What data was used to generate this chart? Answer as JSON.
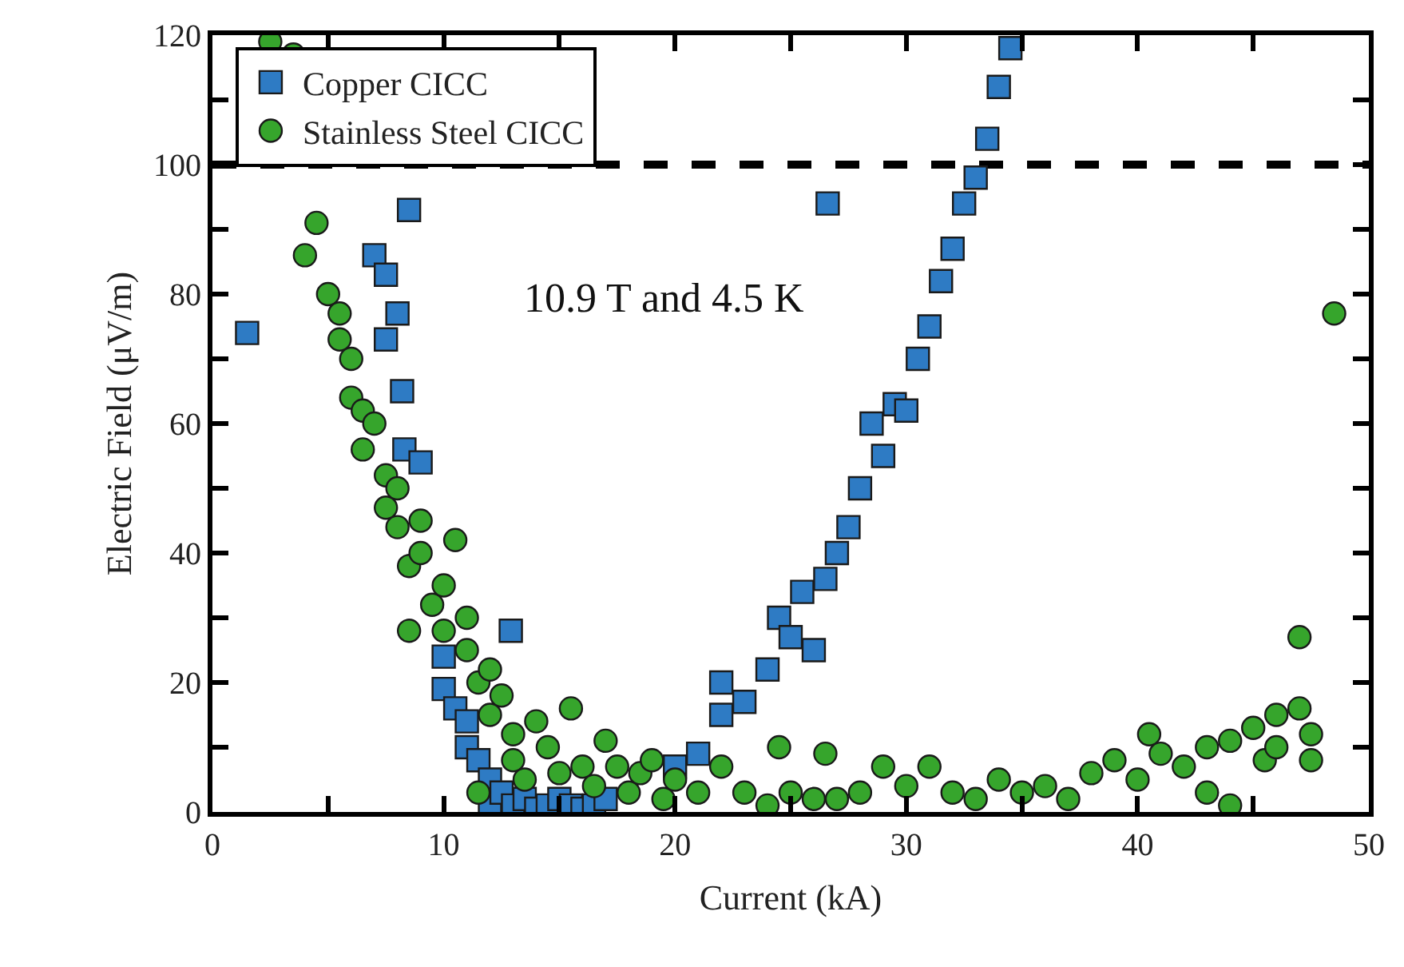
{
  "chart_data": {
    "type": "scatter",
    "xlabel": "Current (kA)",
    "ylabel": "Electric Field (μV/m)",
    "xlim": [
      0,
      50
    ],
    "xticks": [
      0,
      {
        "value": 5,
        "label": null
      },
      10,
      {
        "value": 15,
        "label": null
      },
      20,
      {
        "value": 25,
        "label": null
      },
      30,
      {
        "value": 35,
        "label": null
      },
      40,
      {
        "value": 45,
        "label": null
      },
      50
    ],
    "ylim": [
      0,
      120
    ],
    "yticks": [
      0,
      {
        "value": 10,
        "label": null
      },
      20,
      {
        "value": 30,
        "label": null
      },
      40,
      {
        "value": 50,
        "label": null
      },
      60,
      {
        "value": 70,
        "label": null
      },
      80,
      {
        "value": 90,
        "label": null
      },
      100,
      {
        "value": 110,
        "label": null
      },
      120
    ],
    "grid": false,
    "legend": "top left",
    "annotations": [
      "10.9 T and 4.5 K"
    ],
    "ref_lines": [
      {
        "axis": "y",
        "value": 100,
        "color": "#000000",
        "line_style": "dashed"
      }
    ],
    "series": [
      {
        "name": "Copper CICC",
        "color": "#2e7bc4",
        "marker": "square",
        "x": [
          1.5,
          7,
          7.5,
          7.5,
          8,
          8.2,
          8.3,
          8.5,
          26.6,
          9,
          10,
          10,
          10.5,
          11,
          11,
          11.5,
          12,
          12.9,
          12,
          12.5,
          13,
          13.5,
          14,
          14.5,
          15,
          15.5,
          16,
          16.5,
          17,
          20,
          21,
          22,
          22,
          23,
          24,
          24.5,
          25,
          25.5,
          26,
          26.5,
          27,
          27.5,
          28,
          28.5,
          29,
          29.5,
          30,
          30.5,
          31,
          31.5,
          32,
          32.5,
          33,
          33.5,
          34,
          34.5
        ],
        "values": [
          74,
          86,
          73,
          83,
          77,
          65,
          56,
          93,
          94,
          54,
          24,
          19,
          16,
          14,
          10,
          8,
          5,
          28,
          1,
          3,
          1,
          2,
          0.5,
          1,
          2,
          1,
          0.5,
          1,
          2,
          7,
          9,
          15,
          20,
          17,
          22,
          30,
          27,
          34,
          25,
          36,
          40,
          44,
          50,
          60,
          55,
          63,
          62,
          70,
          75,
          82,
          87,
          94,
          98,
          104,
          112,
          118
        ]
      },
      {
        "name": "Stainless Steel CICC",
        "color": "#36a52c",
        "marker": "circle",
        "x": [
          2.5,
          3.5,
          4,
          4.5,
          5,
          5.5,
          5.5,
          6,
          6,
          6.5,
          6.5,
          7,
          7.5,
          7.5,
          8,
          8,
          8.5,
          8.5,
          9,
          9,
          9.5,
          10,
          10,
          10.5,
          11,
          11,
          11.5,
          11.5,
          12,
          12,
          12.5,
          13,
          13,
          13.5,
          14,
          14.5,
          15,
          15.5,
          16,
          16.5,
          17,
          17.5,
          18,
          18.5,
          19,
          19.5,
          20,
          21,
          22,
          23,
          24,
          24.5,
          25,
          26,
          26.5,
          27,
          28,
          29,
          30,
          31,
          32,
          33,
          34,
          35,
          36,
          37,
          38,
          39,
          40,
          40.5,
          41,
          42,
          43,
          43,
          44,
          44,
          45,
          45.5,
          46,
          46,
          47,
          47,
          47.5,
          47.5,
          48.5
        ],
        "values": [
          119,
          117,
          86,
          91,
          80,
          73,
          77,
          70,
          64,
          62,
          56,
          60,
          52,
          47,
          44,
          50,
          38,
          28,
          40,
          45,
          32,
          35,
          28,
          42,
          25,
          30,
          20,
          3,
          22,
          15,
          18,
          12,
          8,
          5,
          14,
          10,
          6,
          16,
          7,
          4,
          11,
          7,
          3,
          6,
          8,
          2,
          5,
          3,
          7,
          3,
          1,
          10,
          3,
          2,
          9,
          2,
          3,
          7,
          4,
          7,
          3,
          2,
          5,
          3,
          4,
          2,
          6,
          8,
          5,
          12,
          9,
          7,
          10,
          3,
          1,
          11,
          13,
          8,
          15,
          10,
          16,
          27,
          12,
          8,
          77
        ]
      }
    ]
  }
}
